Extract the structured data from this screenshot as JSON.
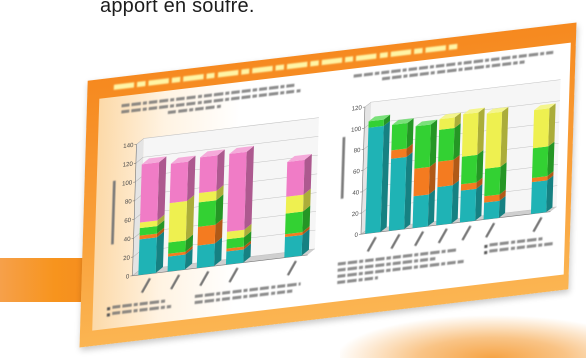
{
  "page": {
    "heading_fragment": "apport en soufre."
  },
  "colors": {
    "frame_orange": "#f6891f",
    "frame_orange_light": "#fbb552",
    "header_text": "#fff5a6",
    "band_orange": "#f7941d"
  },
  "chart_data": [
    {
      "type": "bar",
      "stacked": true,
      "three_d": true,
      "title": "",
      "xlabel": "",
      "ylabel": "",
      "categories": [
        "",
        "",
        "",
        "",
        "",
        ""
      ],
      "ylim": [
        0,
        140
      ],
      "yticks": [
        0,
        20,
        40,
        60,
        80,
        100,
        120,
        140
      ],
      "grid": true,
      "series": [
        {
          "color": "#1fb3b5",
          "values": [
            38,
            16,
            24,
            14,
            null,
            22
          ]
        },
        {
          "color": "#f47b20",
          "values": [
            4,
            3,
            20,
            3,
            null,
            3
          ]
        },
        {
          "color": "#33d133",
          "values": [
            8,
            12,
            26,
            10,
            null,
            22
          ]
        },
        {
          "color": "#eef050",
          "values": [
            6,
            42,
            10,
            8,
            null,
            18
          ]
        },
        {
          "color": "#f07cc6",
          "values": [
            62,
            42,
            38,
            83,
            null,
            37
          ]
        }
      ]
    },
    {
      "type": "bar",
      "stacked": true,
      "three_d": true,
      "title": "",
      "xlabel": "",
      "ylabel": "",
      "categories": [
        "",
        "",
        "",
        "",
        "",
        "",
        "",
        ""
      ],
      "ylim": [
        0,
        120
      ],
      "yticks": [
        0,
        20,
        40,
        60,
        80,
        100,
        120
      ],
      "grid": true,
      "series": [
        {
          "color": "#1fb3b5",
          "values": [
            100,
            68,
            30,
            36,
            30,
            16,
            null,
            30
          ]
        },
        {
          "color": "#f47b20",
          "values": [
            0,
            8,
            26,
            24,
            6,
            6,
            null,
            4
          ]
        },
        {
          "color": "#33d133",
          "values": [
            6,
            24,
            40,
            30,
            26,
            26,
            null,
            28
          ]
        },
        {
          "color": "#eef050",
          "values": [
            0,
            0,
            0,
            10,
            40,
            52,
            null,
            36
          ]
        }
      ]
    }
  ]
}
